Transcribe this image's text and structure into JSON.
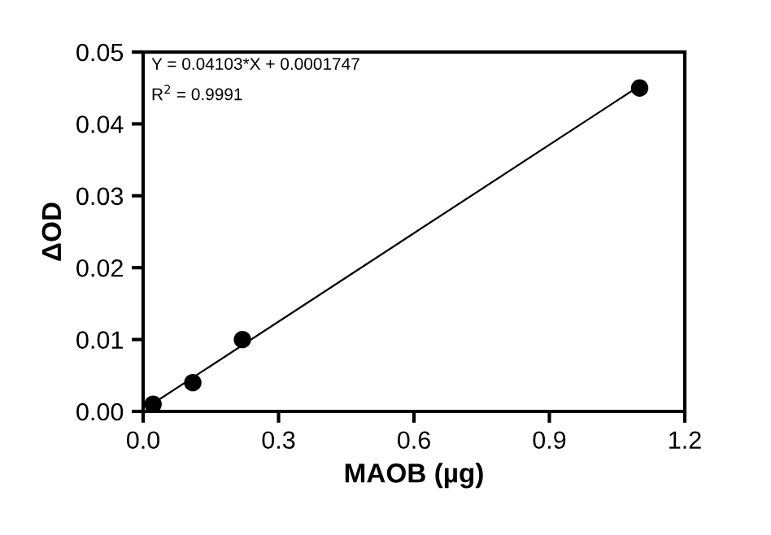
{
  "chart_data": {
    "type": "scatter",
    "xlabel": "MAOB (µg)",
    "ylabel": "ΔOD",
    "annotations": [
      "Y = 0.04103*X + 0.0001747",
      "R$^{2}$ = 0.9991"
    ],
    "series": [
      {
        "color": "#000000",
        "x": [
          0.022,
          0.11,
          0.22,
          1.1
        ],
        "values": [
          0.001,
          0.004,
          0.01,
          0.045
        ],
        "marker": "circle"
      },
      {
        "type": "line",
        "color": "#000000",
        "x": [
          0.022,
          1.1
        ],
        "values": [
          0.0011,
          0.0453
        ],
        "marker": "none"
      }
    ],
    "xlim": [
      0,
      1.2
    ],
    "xticks": [
      {
        "value": 0,
        "label": "0.0"
      },
      0.3,
      0.6,
      0.9,
      1.2
    ],
    "ylim": [
      0,
      0.05
    ],
    "yticks": [
      {
        "value": 0,
        "label": "0.00"
      },
      0.01,
      0.02,
      0.03,
      0.04,
      0.05
    ],
    "grid": false,
    "legend": false
  }
}
